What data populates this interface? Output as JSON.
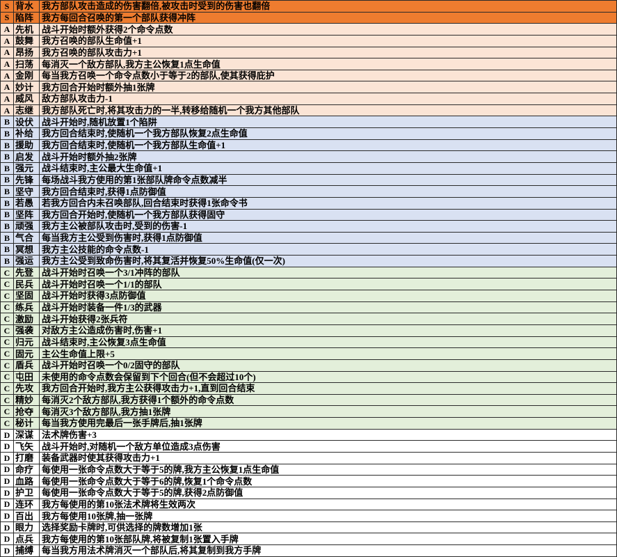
{
  "table": {
    "columns": [
      "tier",
      "name",
      "description"
    ],
    "tier_colors": {
      "S": "#EE7C2F",
      "A": "#FBE4D5",
      "B": "#D9E1F2",
      "C": "#E3EFDA",
      "D": "#FFFFFF"
    },
    "border_color": "#2a2a2a",
    "rows": [
      {
        "tier": "S",
        "name": "背水",
        "description": "我方部队攻击造成的伤害翻倍,被攻击时受到的伤害也翻倍"
      },
      {
        "tier": "S",
        "name": "陷阵",
        "description": "我方每回合召唤的第一个部队获得冲阵"
      },
      {
        "tier": "A",
        "name": "先机",
        "description": "战斗开始时额外获得2个命令点数"
      },
      {
        "tier": "A",
        "name": "鼓舞",
        "description": "我方召唤的部队生命值+1"
      },
      {
        "tier": "A",
        "name": "昂扬",
        "description": "我方召唤的部队攻击力+1"
      },
      {
        "tier": "A",
        "name": "扫荡",
        "description": "每消灭一个敌方部队,我方主公恢复1点生命值"
      },
      {
        "tier": "A",
        "name": "金刚",
        "description": "每当我方召唤一个命令点数小于等于2的部队,使其获得庇护"
      },
      {
        "tier": "A",
        "name": "妙计",
        "description": "我方回合开始时额外抽1张牌"
      },
      {
        "tier": "A",
        "name": "威风",
        "description": "敌方部队攻击力-1"
      },
      {
        "tier": "A",
        "name": "志继",
        "description": "我方部队死亡时,将其攻击力的一半,转移给随机一个我方其他部队"
      },
      {
        "tier": "B",
        "name": "设伏",
        "description": "战斗开始时,随机放置1个陷阱"
      },
      {
        "tier": "B",
        "name": "补给",
        "description": "我方回合结束时,使随机一个我方部队恢复2点生命值"
      },
      {
        "tier": "B",
        "name": "援助",
        "description": "我方回合结束时,使随机一个我方部队生命值+1"
      },
      {
        "tier": "B",
        "name": "启发",
        "description": "战斗开始时额外抽2张牌"
      },
      {
        "tier": "B",
        "name": "强元",
        "description": "战斗结束时,主公最大生命值+1"
      },
      {
        "tier": "B",
        "name": "先锋",
        "description": "每场战斗我方使用的第1张部队牌命令点数减半"
      },
      {
        "tier": "B",
        "name": "坚守",
        "description": "我方回合结束时,获得1点防御值"
      },
      {
        "tier": "B",
        "name": "若愚",
        "description": "若我方回合内未召唤部队,回合结束时获得1张命令书"
      },
      {
        "tier": "B",
        "name": "坚阵",
        "description": "我方回合开始时,使随机一个我方部队获得固守"
      },
      {
        "tier": "B",
        "name": "顽强",
        "description": "我方主公被部队攻击时,受到的伤害-1"
      },
      {
        "tier": "B",
        "name": "气合",
        "description": "每当我方主公受到伤害时,获得1点防御值"
      },
      {
        "tier": "B",
        "name": "冥想",
        "description": "我方主公技能的命令点数-1"
      },
      {
        "tier": "B",
        "name": "强运",
        "description": "我方主公受到致命伤害时,将其复活并恢复50%生命值(仅一次)"
      },
      {
        "tier": "C",
        "name": "先登",
        "description": "战斗开始时召唤一个3/1冲阵的部队"
      },
      {
        "tier": "C",
        "name": "民兵",
        "description": "战斗开始时召唤一个1/1的部队"
      },
      {
        "tier": "C",
        "name": "坚固",
        "description": "战斗开始时获得3点防御值"
      },
      {
        "tier": "C",
        "name": "练兵",
        "description": "战斗开始时装备一件1/3的武器"
      },
      {
        "tier": "C",
        "name": "激励",
        "description": "战斗开始获得2张兵符"
      },
      {
        "tier": "C",
        "name": "强袭",
        "description": "对敌方主公造成伤害时,伤害+1"
      },
      {
        "tier": "C",
        "name": "归元",
        "description": "战斗结束时,主公恢复3点生命值"
      },
      {
        "tier": "C",
        "name": "固元",
        "description": "主公生命值上限+5"
      },
      {
        "tier": "C",
        "name": "盾兵",
        "description": "战斗开始时召唤一个0/2固守的部队"
      },
      {
        "tier": "C",
        "name": "屯田",
        "description": "未使用的命令点数会保留到下个回合(但不会超过10个)"
      },
      {
        "tier": "C",
        "name": "先攻",
        "description": "我方回合开始时,我方主公获得攻击力+1,直到回合结束"
      },
      {
        "tier": "C",
        "name": "精妙",
        "description": "每消灭2个敌方部队,我方获得1个额外的命令点数"
      },
      {
        "tier": "C",
        "name": "抢夺",
        "description": "每消灭3个敌方部队,我方抽1张牌"
      },
      {
        "tier": "C",
        "name": "秘计",
        "description": "每当我方使用完最后一张手牌后,抽1张牌"
      },
      {
        "tier": "D",
        "name": "深谋",
        "description": "法术牌伤害+3"
      },
      {
        "tier": "D",
        "name": "飞矢",
        "description": "战斗开始时,对随机一个敌方单位造成3点伤害"
      },
      {
        "tier": "D",
        "name": "打磨",
        "description": "装备武器时使其获得攻击力+1"
      },
      {
        "tier": "D",
        "name": "命疗",
        "description": "每使用一张命令点数大于等于5的牌,我方主公恢复1点生命值"
      },
      {
        "tier": "D",
        "name": "血路",
        "description": "每使用一张命令点数大于等于6的牌,恢复1个命令点数"
      },
      {
        "tier": "D",
        "name": "护卫",
        "description": "每使用一张命令点数大于等于5的牌,获得2点防御值"
      },
      {
        "tier": "D",
        "name": "连环",
        "description": "我方每使用的第10张法术牌将生效两次"
      },
      {
        "tier": "D",
        "name": "百出",
        "description": "我方每使用10张牌,抽一张牌"
      },
      {
        "tier": "D",
        "name": "眼力",
        "description": "选择奖励卡牌时,可供选择的牌数增加1张"
      },
      {
        "tier": "D",
        "name": "点兵",
        "description": "我方每使用的第10张部队牌,将被复制1张置入手牌"
      },
      {
        "tier": "D",
        "name": "捕缚",
        "description": "每当我方用法术牌消灭一个部队后,将其复制到我方手牌"
      }
    ]
  }
}
